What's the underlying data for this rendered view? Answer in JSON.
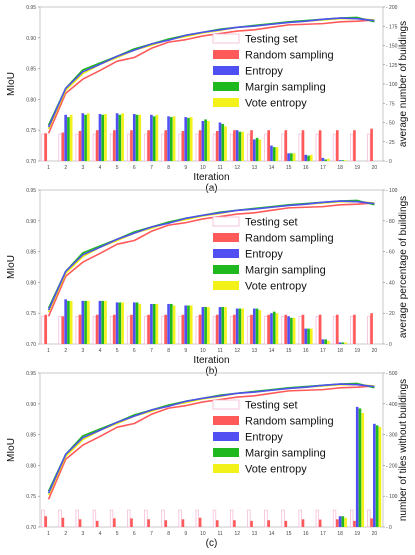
{
  "chart_data": [
    {
      "type": "bar+line",
      "caption": "(a)",
      "xlabel": "Iteration",
      "ylabel": "MIoU",
      "y2label": "average number of buildings",
      "x": [
        1,
        2,
        3,
        4,
        5,
        6,
        7,
        8,
        9,
        10,
        11,
        12,
        13,
        14,
        15,
        16,
        17,
        18,
        19,
        20
      ],
      "ylim": [
        0.7,
        0.95
      ],
      "yticks": [
        "0.70",
        "0.75",
        "0.80",
        "0.85",
        "0.90",
        "0.95"
      ],
      "y2lim": [
        0,
        200
      ],
      "y2ticks": [
        "0",
        "25",
        "50",
        "75",
        "100",
        "125",
        "150",
        "175",
        "200"
      ],
      "legend": [
        "Testing set",
        "Random sampling",
        "Entropy",
        "Margin sampling",
        "Vote entropy"
      ],
      "legend_position": "center-right",
      "colors": {
        "testing": "#f4b5d4",
        "random": "#ff5a5a",
        "entropy": "#4f4ff2",
        "margin": "#1fb81f",
        "vote": "#f2f21a",
        "line_vote": "#eaea10"
      },
      "bars": {
        "Testing set": [
          35,
          35,
          35,
          35,
          35,
          35,
          35,
          35,
          35,
          35,
          35,
          35,
          35,
          35,
          35,
          35,
          35,
          35,
          35,
          35
        ],
        "Random sampling": [
          36,
          37,
          39,
          40,
          40,
          40,
          40,
          40,
          39,
          40,
          39,
          40,
          40,
          40,
          40,
          40,
          40,
          40,
          40,
          42
        ],
        "Entropy": [
          0,
          60,
          62,
          61,
          62,
          61,
          60,
          58,
          57,
          52,
          50,
          40,
          28,
          20,
          10,
          8,
          4,
          1,
          0,
          0
        ],
        "Margin sampling": [
          0,
          57,
          60,
          60,
          60,
          60,
          58,
          57,
          56,
          54,
          48,
          38,
          30,
          18,
          10,
          7,
          2,
          1,
          0,
          0
        ],
        "Vote entropy": [
          0,
          60,
          62,
          61,
          62,
          60,
          60,
          58,
          57,
          52,
          45,
          38,
          28,
          18,
          10,
          8,
          3,
          1,
          0,
          0
        ]
      },
      "lines": {
        "Random sampling": [
          0.745,
          0.81,
          0.833,
          0.847,
          0.862,
          0.868,
          0.883,
          0.893,
          0.897,
          0.903,
          0.907,
          0.911,
          0.913,
          0.917,
          0.921,
          0.922,
          0.923,
          0.926,
          0.927,
          0.929
        ],
        "Entropy": [
          0.755,
          0.818,
          0.845,
          0.857,
          0.87,
          0.88,
          0.89,
          0.896,
          0.904,
          0.909,
          0.913,
          0.917,
          0.919,
          0.922,
          0.925,
          0.927,
          0.93,
          0.932,
          0.931,
          0.928
        ],
        "Margin sampling": [
          0.758,
          0.818,
          0.848,
          0.859,
          0.87,
          0.882,
          0.89,
          0.898,
          0.904,
          0.909,
          0.914,
          0.917,
          0.92,
          0.923,
          0.926,
          0.928,
          0.93,
          0.932,
          0.933,
          0.926
        ],
        "Vote entropy": [
          0.752,
          0.815,
          0.842,
          0.857,
          0.868,
          0.88,
          0.888,
          0.897,
          0.902,
          0.908,
          0.912,
          0.917,
          0.919,
          0.922,
          0.925,
          0.927,
          0.929,
          0.931,
          0.931,
          0.929
        ]
      }
    },
    {
      "type": "bar+line",
      "caption": "(b)",
      "xlabel": "Iteration",
      "ylabel": "MIoU",
      "y2label": "average percentage of buildings",
      "x": [
        1,
        2,
        3,
        4,
        5,
        6,
        7,
        8,
        9,
        10,
        11,
        12,
        13,
        14,
        15,
        16,
        17,
        18,
        19,
        20
      ],
      "ylim": [
        0.7,
        0.95
      ],
      "yticks": [
        "0.70",
        "0.75",
        "0.80",
        "0.85",
        "0.90",
        "0.95"
      ],
      "y2lim": [
        0,
        100
      ],
      "y2ticks": [
        "0",
        "20",
        "40",
        "60",
        "80",
        "100"
      ],
      "legend": [
        "Testing set",
        "Random sampling",
        "Entropy",
        "Margin sampling",
        "Vote entropy"
      ],
      "legend_position": "center-right",
      "colors": {
        "testing": "#f4b5d4",
        "random": "#ff5a5a",
        "entropy": "#4f4ff2",
        "margin": "#1fb81f",
        "vote": "#f2f21a",
        "line_vote": "#eaea10"
      },
      "bars": {
        "Testing set": [
          18,
          18,
          18,
          18,
          18,
          18,
          18,
          18,
          18,
          18,
          18,
          18,
          18,
          18,
          18,
          18,
          18,
          18,
          18,
          18
        ],
        "Random sampling": [
          19,
          18,
          19,
          19,
          19,
          19,
          19,
          19,
          19,
          19,
          19,
          19,
          19,
          19,
          19,
          19,
          19,
          19,
          19,
          20
        ],
        "Entropy": [
          0,
          29,
          28,
          28,
          27,
          27,
          26,
          26,
          25,
          24,
          24,
          23,
          23,
          20,
          18,
          10,
          3,
          1,
          0,
          0
        ],
        "Margin sampling": [
          0,
          28,
          28,
          28,
          27,
          27,
          26,
          26,
          25,
          24,
          24,
          23,
          23,
          21,
          17,
          10,
          3,
          1,
          0,
          0
        ],
        "Vote entropy": [
          0,
          28,
          28,
          28,
          27,
          26,
          26,
          25,
          25,
          24,
          24,
          23,
          22,
          20,
          17,
          10,
          2,
          1,
          0,
          0
        ]
      },
      "lines": {
        "Random sampling": [
          0.745,
          0.81,
          0.833,
          0.847,
          0.862,
          0.868,
          0.883,
          0.893,
          0.897,
          0.903,
          0.907,
          0.911,
          0.913,
          0.917,
          0.921,
          0.922,
          0.923,
          0.926,
          0.927,
          0.929
        ],
        "Entropy": [
          0.755,
          0.818,
          0.845,
          0.857,
          0.87,
          0.88,
          0.89,
          0.896,
          0.904,
          0.909,
          0.913,
          0.917,
          0.919,
          0.922,
          0.925,
          0.927,
          0.93,
          0.932,
          0.931,
          0.928
        ],
        "Margin sampling": [
          0.758,
          0.818,
          0.848,
          0.859,
          0.87,
          0.882,
          0.89,
          0.898,
          0.904,
          0.909,
          0.914,
          0.917,
          0.92,
          0.923,
          0.926,
          0.928,
          0.93,
          0.932,
          0.933,
          0.926
        ],
        "Vote entropy": [
          0.752,
          0.815,
          0.842,
          0.857,
          0.868,
          0.88,
          0.888,
          0.897,
          0.902,
          0.908,
          0.912,
          0.917,
          0.919,
          0.922,
          0.925,
          0.927,
          0.929,
          0.931,
          0.931,
          0.929
        ]
      }
    },
    {
      "type": "bar+line",
      "caption": "(c)",
      "xlabel": "",
      "ylabel": "MIoU",
      "y2label": "number of tiles without buildings",
      "x": [
        1,
        2,
        3,
        4,
        5,
        6,
        7,
        8,
        9,
        10,
        11,
        12,
        13,
        14,
        15,
        16,
        17,
        18,
        19,
        20
      ],
      "ylim": [
        0.7,
        0.95
      ],
      "yticks": [
        "0.70",
        "0.75",
        "0.80",
        "0.85",
        "0.90",
        "0.95"
      ],
      "y2lim": [
        0,
        500
      ],
      "y2ticks": [
        "0",
        "100",
        "200",
        "300",
        "400",
        "500"
      ],
      "legend": [
        "Testing set",
        "Random sampling",
        "Entropy",
        "Margin sampling",
        "Vote entropy"
      ],
      "legend_position": "center-right",
      "colors": {
        "testing": "#f4b5d4",
        "random": "#ff5a5a",
        "entropy": "#4f4ff2",
        "margin": "#1fb81f",
        "vote": "#f2f21a",
        "line_vote": "#eaea10"
      },
      "bars": {
        "Testing set": [
          55,
          55,
          55,
          55,
          55,
          55,
          55,
          55,
          55,
          55,
          55,
          55,
          55,
          55,
          55,
          55,
          55,
          55,
          55,
          55
        ],
        "Random sampling": [
          35,
          30,
          25,
          20,
          28,
          28,
          25,
          22,
          25,
          30,
          22,
          22,
          20,
          22,
          20,
          25,
          24,
          25,
          20,
          28
        ],
        "Entropy": [
          0,
          0,
          0,
          0,
          0,
          0,
          0,
          0,
          0,
          0,
          0,
          0,
          0,
          0,
          0,
          0,
          0,
          35,
          390,
          335
        ],
        "Margin sampling": [
          0,
          0,
          0,
          0,
          0,
          0,
          0,
          0,
          0,
          0,
          0,
          0,
          0,
          0,
          0,
          0,
          0,
          35,
          385,
          330
        ],
        "Vote entropy": [
          0,
          0,
          0,
          0,
          0,
          0,
          0,
          0,
          0,
          0,
          0,
          0,
          0,
          0,
          0,
          0,
          0,
          30,
          370,
          325
        ]
      },
      "lines": {
        "Random sampling": [
          0.745,
          0.81,
          0.833,
          0.847,
          0.862,
          0.868,
          0.883,
          0.893,
          0.897,
          0.903,
          0.907,
          0.911,
          0.913,
          0.917,
          0.921,
          0.922,
          0.923,
          0.926,
          0.927,
          0.929
        ],
        "Entropy": [
          0.755,
          0.818,
          0.845,
          0.857,
          0.87,
          0.88,
          0.89,
          0.896,
          0.904,
          0.909,
          0.913,
          0.917,
          0.919,
          0.922,
          0.925,
          0.927,
          0.93,
          0.932,
          0.931,
          0.928
        ],
        "Margin sampling": [
          0.758,
          0.818,
          0.848,
          0.859,
          0.87,
          0.882,
          0.89,
          0.898,
          0.904,
          0.909,
          0.914,
          0.917,
          0.92,
          0.923,
          0.926,
          0.928,
          0.93,
          0.932,
          0.933,
          0.926
        ],
        "Vote entropy": [
          0.752,
          0.815,
          0.842,
          0.857,
          0.868,
          0.88,
          0.888,
          0.897,
          0.902,
          0.908,
          0.912,
          0.917,
          0.919,
          0.922,
          0.925,
          0.927,
          0.929,
          0.931,
          0.931,
          0.929
        ]
      }
    }
  ]
}
